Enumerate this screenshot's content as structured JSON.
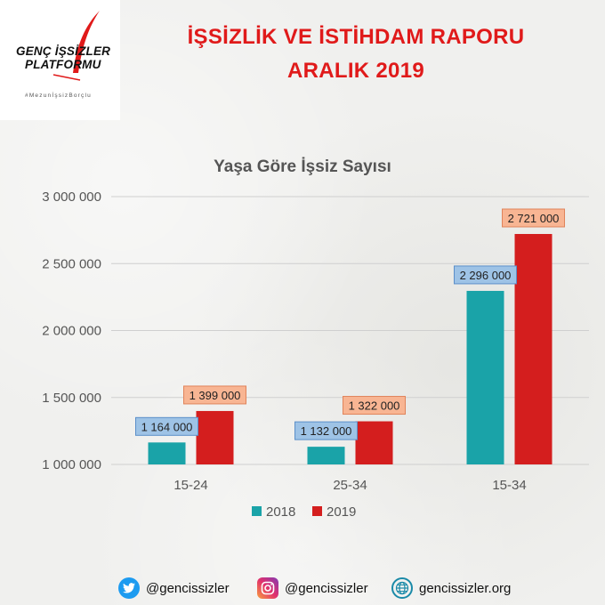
{
  "header": {
    "logo_line1": "GENÇ İŞSİZLER",
    "logo_line2": "PLATFORMU",
    "logo_tagline": "#MezunİşsizBorçlu",
    "title_line1": "İŞSİZLİK VE İSTİHDAM RAPORU",
    "title_line2": "ARALIK 2019"
  },
  "chart_data": {
    "type": "bar",
    "title": "Yaşa Göre İşsiz Sayısı",
    "categories": [
      "15-24",
      "25-34",
      "15-34"
    ],
    "series": [
      {
        "name": "2018",
        "color": "#1aa3a8",
        "label_bg": "#9ec3e6",
        "label_border": "#5b8fc9",
        "values": [
          1164000,
          1132000,
          2296000
        ],
        "labels": [
          "1 164 000",
          "1 132 000",
          "2 296 000"
        ]
      },
      {
        "name": "2019",
        "color": "#d41e1e",
        "label_bg": "#f8b593",
        "label_border": "#e0835a",
        "values": [
          1399000,
          1322000,
          2721000
        ],
        "labels": [
          "1 399 000",
          "1 322 000",
          "2 721 000"
        ]
      }
    ],
    "ylim": [
      1000000,
      3000000
    ],
    "yticks": [
      1000000,
      1500000,
      2000000,
      2500000,
      3000000
    ],
    "ytick_labels": [
      "1 000 000",
      "1 500 000",
      "2 000 000",
      "2 500 000",
      "3 000 000"
    ],
    "grid": true,
    "legend": "bottom"
  },
  "footer": {
    "twitter": "@gencissizler",
    "instagram": "@gencissizler",
    "website": "gencissizler.org"
  }
}
